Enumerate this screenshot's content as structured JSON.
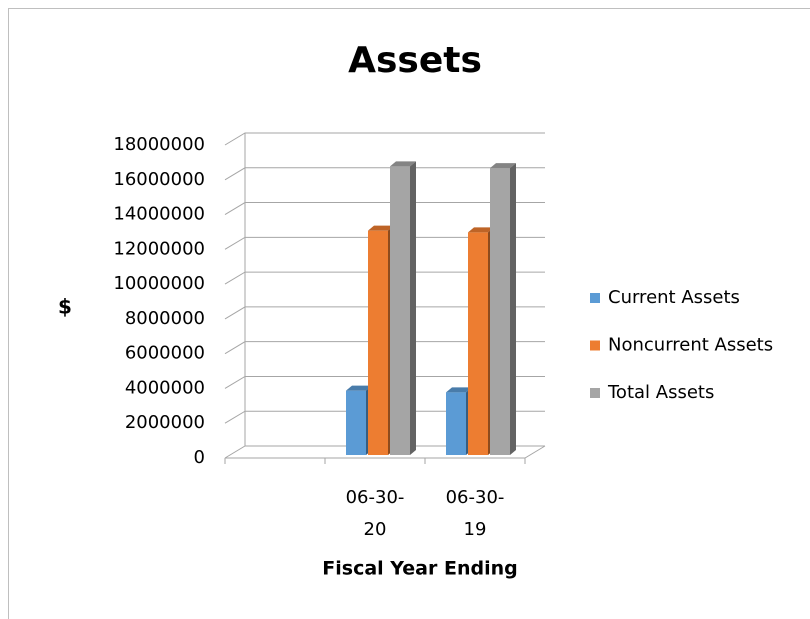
{
  "chart_data": {
    "type": "bar3d",
    "title": "Assets",
    "y_label": "$",
    "x_label": "Fiscal Year Ending",
    "categories": [
      null,
      "06-30-20",
      "06-30-19"
    ],
    "series": [
      {
        "name": "Current Assets",
        "color": "#5b9bd5",
        "values": [
          null,
          3700000,
          3600000
        ]
      },
      {
        "name": "Noncurrent Assets",
        "color": "#ed7d31",
        "values": [
          null,
          12900000,
          12800000
        ]
      },
      {
        "name": "Total Assets",
        "color": "#a5a5a5",
        "values": [
          null,
          16600000,
          16500000
        ]
      }
    ],
    "ylim": [
      0,
      18000000
    ],
    "yticks": [
      0,
      2000000,
      4000000,
      6000000,
      8000000,
      10000000,
      12000000,
      14000000,
      16000000,
      18000000
    ],
    "grid": true,
    "legend": "right"
  }
}
